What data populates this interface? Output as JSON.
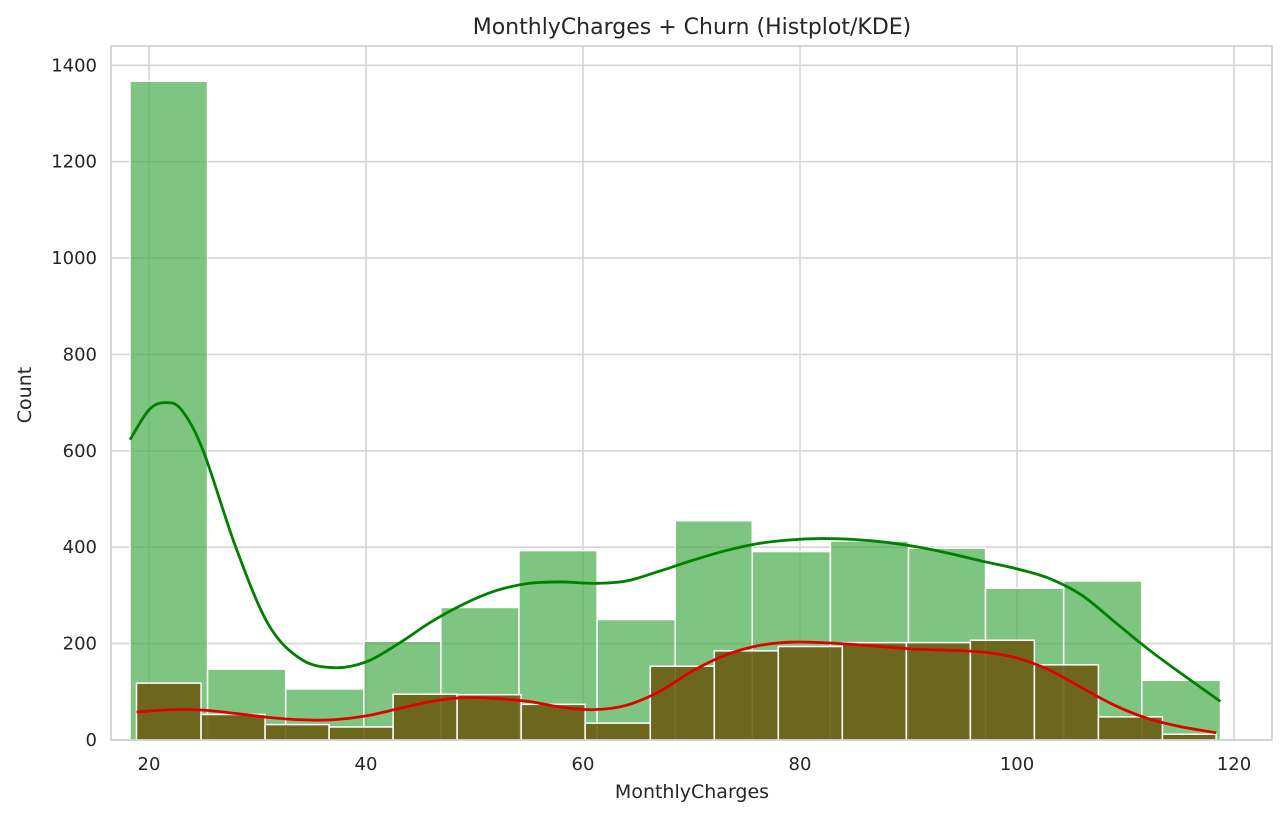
{
  "chart_data": {
    "type": "bar",
    "title": "MonthlyCharges + Churn (Histplot/KDE)",
    "xlabel": "MonthlyCharges",
    "ylabel": "Count",
    "xlim": [
      16.5,
      123.5
    ],
    "ylim": [
      0,
      1440
    ],
    "xticks": [
      20,
      40,
      60,
      80,
      100,
      120
    ],
    "yticks": [
      0,
      200,
      400,
      600,
      800,
      1000,
      1200,
      1400
    ],
    "grid": true,
    "legend": "none",
    "colors": {
      "no_churn": "#4caf50",
      "churn": "#6b5a10",
      "no_churn_kde": "#008000",
      "churn_kde": "#e00000"
    },
    "series": [
      {
        "bin_edges": [
          18.25,
          25.4,
          32.6,
          39.8,
          46.9,
          54.1,
          61.3,
          68.5,
          75.6,
          82.8,
          90.0,
          97.1,
          104.3,
          111.5,
          118.75
        ],
        "counts": [
          1367,
          147,
          106,
          205,
          275,
          393,
          250,
          455,
          391,
          413,
          398,
          315,
          330,
          124
        ]
      },
      {
        "bin_edges": [
          18.85,
          24.8,
          30.7,
          36.6,
          42.5,
          48.4,
          54.3,
          60.2,
          66.2,
          72.1,
          78.0,
          83.9,
          89.8,
          95.7,
          101.6,
          107.5,
          113.4,
          118.35
        ],
        "counts": [
          118,
          53,
          32,
          27,
          95,
          94,
          74,
          35,
          153,
          185,
          194,
          202,
          202,
          207,
          156,
          48,
          12
        ]
      }
    ],
    "kde": [
      {
        "x": [
          18.25,
          20,
          21.5,
          23,
          25,
          28,
          31,
          34,
          37,
          40,
          43,
          46,
          49,
          52,
          55,
          58,
          61,
          64,
          67,
          70,
          73,
          76,
          79,
          82,
          85,
          88,
          91,
          94,
          97,
          100,
          103,
          106,
          109,
          112,
          115,
          118.75
        ],
        "y": [
          623,
          685,
          700,
          685,
          600,
          400,
          240,
          168,
          150,
          162,
          200,
          245,
          282,
          310,
          325,
          328,
          325,
          330,
          350,
          372,
          392,
          407,
          415,
          418,
          416,
          410,
          400,
          386,
          370,
          355,
          335,
          300,
          245,
          190,
          140,
          80
        ]
      },
      {
        "x": [
          18.85,
          22,
          25,
          28,
          31,
          34,
          37,
          40,
          43,
          46,
          49,
          52,
          55,
          58,
          61,
          64,
          67,
          70,
          73,
          76,
          79,
          82,
          85,
          88,
          91,
          94,
          97,
          100,
          103,
          106,
          109,
          112,
          115,
          118.35
        ],
        "y": [
          58,
          63,
          62,
          55,
          47,
          42,
          42,
          50,
          65,
          80,
          88,
          86,
          80,
          68,
          63,
          72,
          100,
          142,
          175,
          195,
          203,
          202,
          198,
          193,
          188,
          186,
          182,
          170,
          145,
          108,
          72,
          45,
          28,
          15
        ]
      }
    ]
  }
}
